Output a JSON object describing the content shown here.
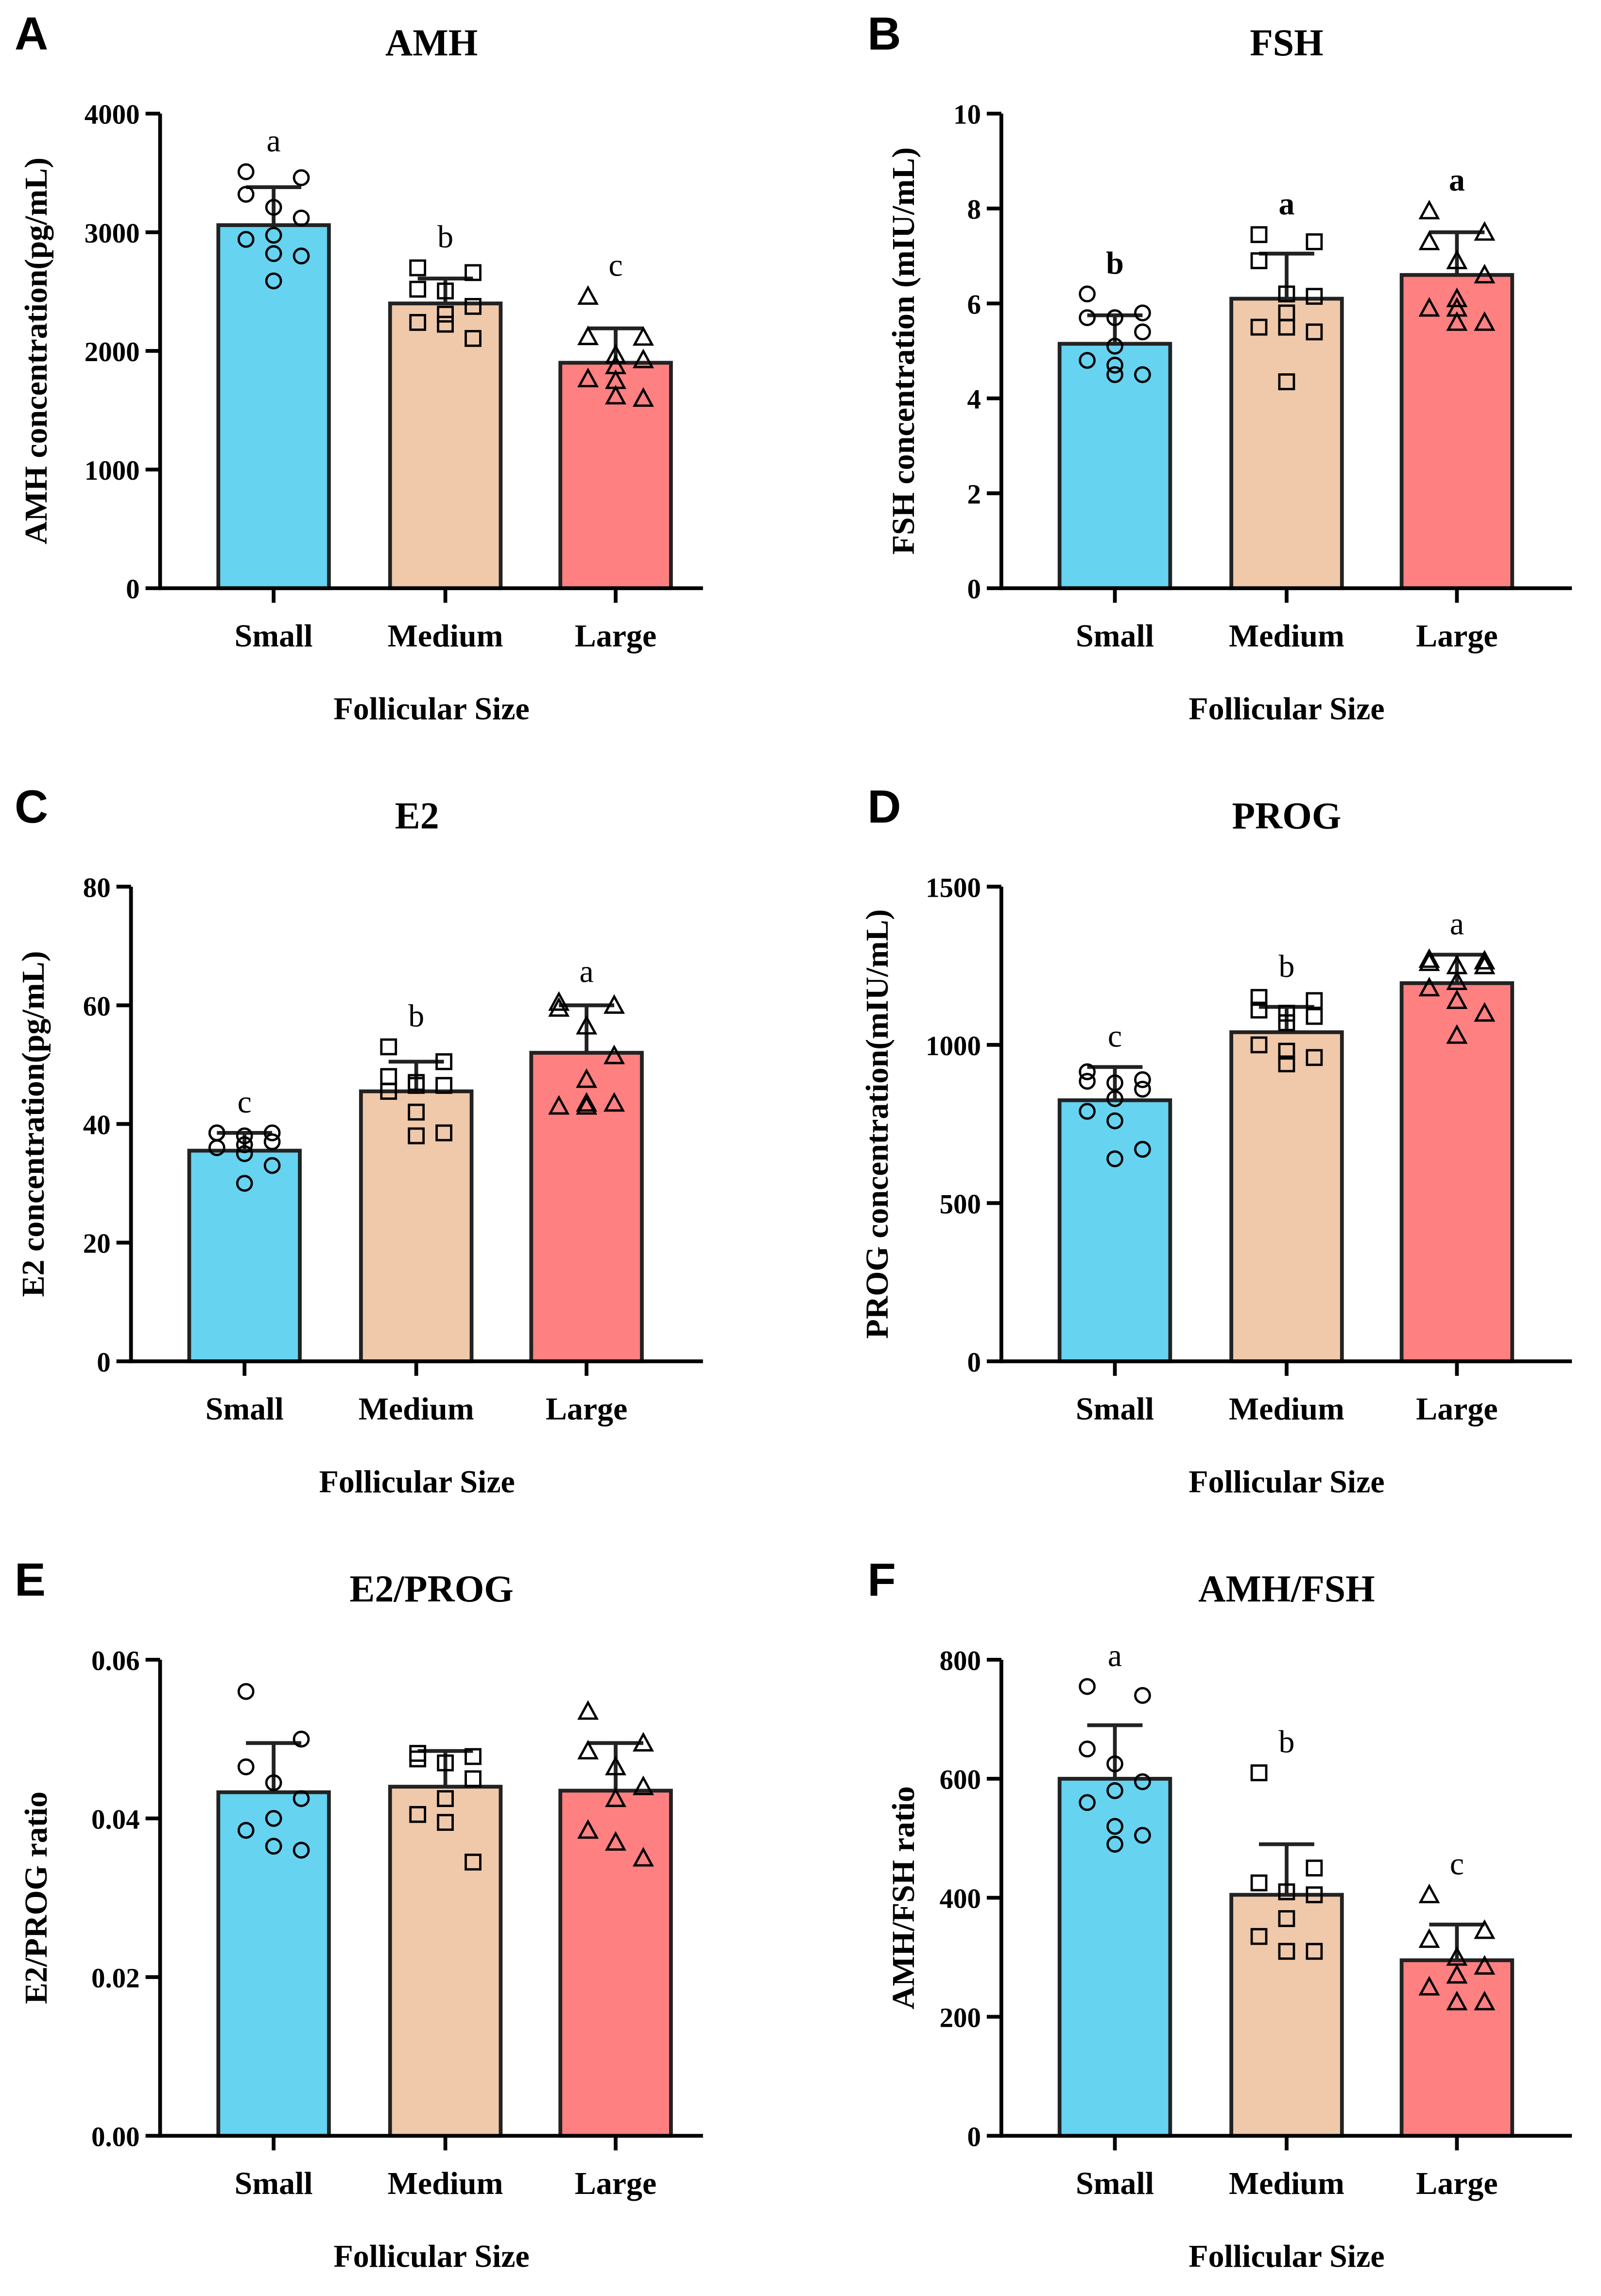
{
  "colors": {
    "Small": "#66D3F1",
    "Medium": "#F0C9AA",
    "Large": "#FF8080"
  },
  "chart_data": [
    {
      "panel": "A",
      "type": "bar",
      "title": "AMH",
      "xlabel": "Follicular Size",
      "ylabel": "AMH concentration(pg/mL)",
      "categories": [
        "Small",
        "Medium",
        "Large"
      ],
      "ylim": [
        0,
        4000
      ],
      "yticks": [
        0,
        1000,
        2000,
        3000,
        4000
      ],
      "ytick_labels": [
        "0",
        "1000",
        "2000",
        "3000",
        "4000"
      ],
      "values": [
        3060,
        2400,
        1900
      ],
      "error_upper": [
        3380,
        2610,
        2190
      ],
      "letters": [
        "a",
        "b",
        "c"
      ],
      "letters_bold": false,
      "points": [
        [
          3510,
          3460,
          3320,
          3210,
          3120,
          2975,
          2940,
          2820,
          2800,
          2590
        ],
        [
          2700,
          2660,
          2520,
          2505,
          2375,
          2310,
          2240,
          2225,
          2105
        ],
        [
          2460,
          2115,
          2120,
          1965,
          1925,
          1875,
          1765,
          1750,
          1600,
          1620
        ]
      ]
    },
    {
      "panel": "B",
      "type": "bar",
      "title": "FSH",
      "xlabel": "Follicular Size",
      "ylabel": "FSH concentration (mIU/mL)",
      "categories": [
        "Small",
        "Medium",
        "Large"
      ],
      "ylim": [
        0,
        10
      ],
      "yticks": [
        0,
        2,
        4,
        6,
        8,
        10
      ],
      "ytick_labels": [
        "0",
        "2",
        "4",
        "6",
        "8",
        "10"
      ],
      "values": [
        5.15,
        6.1,
        6.6
      ],
      "error_upper": [
        5.75,
        7.05,
        7.5
      ],
      "letters": [
        "b",
        "a",
        "a"
      ],
      "letters_bold": true,
      "points": [
        [
          6.2,
          5.8,
          5.7,
          5.7,
          5.4,
          5.1,
          4.8,
          4.7,
          4.5,
          4.5
        ],
        [
          7.45,
          7.3,
          6.9,
          6.2,
          6.15,
          5.8,
          5.5,
          5.5,
          5.4,
          4.35
        ],
        [
          7.95,
          7.5,
          7.3,
          6.9,
          6.6,
          6.1,
          5.9,
          5.9,
          5.6,
          5.6
        ]
      ]
    },
    {
      "panel": "C",
      "type": "bar",
      "title": "E2",
      "xlabel": "Follicular Size",
      "ylabel": "E2 concentration(pg/mL)",
      "categories": [
        "Small",
        "Medium",
        "Large"
      ],
      "ylim": [
        0,
        80
      ],
      "yticks": [
        0,
        20,
        40,
        60,
        80
      ],
      "ytick_labels": [
        "0",
        "20",
        "40",
        "60",
        "80"
      ],
      "values": [
        35.5,
        45.5,
        52
      ],
      "error_upper": [
        38.5,
        50.5,
        60
      ],
      "letters": [
        "c",
        "b",
        "a"
      ],
      "letters_bold": false,
      "points": [
        [
          38.5,
          38.5,
          38.5,
          38,
          37,
          36.5,
          36,
          35,
          33,
          30
        ],
        [
          53,
          50.5,
          48,
          47,
          46.5,
          46.5,
          45.5,
          42,
          38.5,
          38
        ],
        [
          60.5,
          60,
          59.5,
          56.5,
          51.5,
          47.5,
          43,
          43,
          43.5,
          43.5
        ]
      ]
    },
    {
      "panel": "D",
      "type": "bar",
      "title": "PROG",
      "xlabel": "Follicular Size",
      "ylabel": "PROG concentration(mIU/mL)",
      "categories": [
        "Small",
        "Medium",
        "Large"
      ],
      "ylim": [
        0,
        1500
      ],
      "yticks": [
        0,
        500,
        1000,
        1500
      ],
      "ytick_labels": [
        "0",
        "500",
        "1000",
        "1500"
      ],
      "values": [
        825,
        1040,
        1195
      ],
      "error_upper": [
        930,
        1120,
        1285
      ],
      "letters": [
        "c",
        "b",
        "a"
      ],
      "letters_bold": false,
      "points": [
        [
          915,
          890,
          885,
          880,
          860,
          830,
          790,
          760,
          670,
          640
        ],
        [
          1150,
          1140,
          1110,
          1100,
          1090,
          1070,
          1000,
          980,
          960,
          940
        ],
        [
          1270,
          1265,
          1260,
          1250,
          1250,
          1200,
          1180,
          1140,
          1100,
          1030
        ]
      ]
    },
    {
      "panel": "E",
      "type": "bar",
      "title": "E2/PROG",
      "xlabel": "Follicular Size",
      "ylabel": "E2/PROG ratio",
      "categories": [
        "Small",
        "Medium",
        "Large"
      ],
      "ylim": [
        0,
        0.06
      ],
      "yticks": [
        0,
        0.02,
        0.04,
        0.06
      ],
      "ytick_labels": [
        "0.00",
        "0.02",
        "0.04",
        "0.06"
      ],
      "values": [
        0.0433,
        0.044,
        0.0435
      ],
      "error_upper": [
        0.0495,
        0.0485,
        0.0495
      ],
      "letters": [
        "",
        "",
        ""
      ],
      "letters_bold": false,
      "points": [
        [
          0.056,
          0.05,
          0.0465,
          0.0445,
          0.0425,
          0.04,
          0.0385,
          0.0365,
          0.036
        ],
        [
          0.0482,
          0.0478,
          0.0475,
          0.047,
          0.045,
          0.0425,
          0.0405,
          0.0395,
          0.0345
        ],
        [
          0.0535,
          0.0495,
          0.0485,
          0.0465,
          0.044,
          0.0425,
          0.0385,
          0.037,
          0.035
        ]
      ]
    },
    {
      "panel": "F",
      "type": "bar",
      "title": "AMH/FSH",
      "xlabel": "Follicular Size",
      "ylabel": "AMH/FSH ratio",
      "categories": [
        "Small",
        "Medium",
        "Large"
      ],
      "ylim": [
        0,
        800
      ],
      "yticks": [
        0,
        200,
        400,
        600,
        800
      ],
      "ytick_labels": [
        "0",
        "200",
        "400",
        "600",
        "800"
      ],
      "values": [
        600,
        405,
        295
      ],
      "error_upper": [
        690,
        490,
        355
      ],
      "letters": [
        "a",
        "b",
        "c"
      ],
      "letters_bold": false,
      "points": [
        [
          755,
          740,
          650,
          625,
          595,
          580,
          560,
          520,
          505,
          490
        ],
        [
          610,
          450,
          425,
          410,
          405,
          365,
          335,
          310,
          310
        ],
        [
          405,
          345,
          330,
          300,
          285,
          270,
          250,
          225,
          225
        ]
      ]
    }
  ]
}
